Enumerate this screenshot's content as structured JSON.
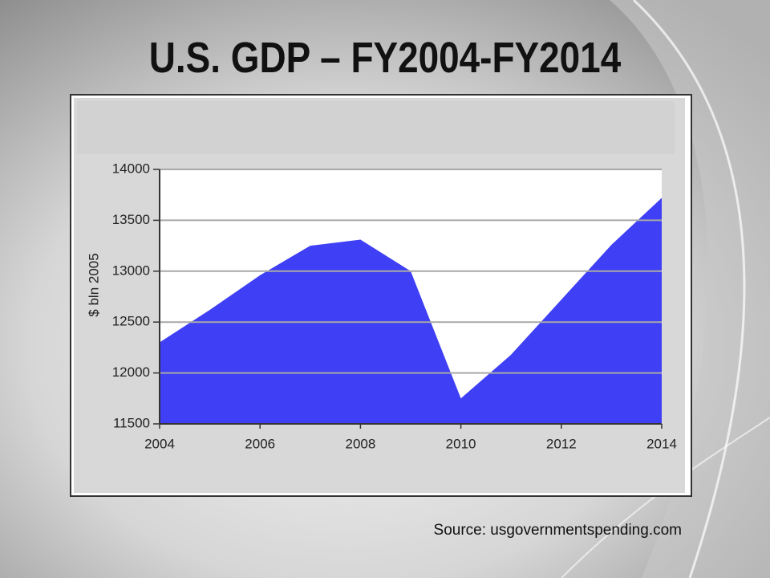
{
  "chart_data": {
    "type": "area",
    "title": "U.S. GDP – FY2004-FY2014",
    "y_label": "$ bln 2005",
    "source": "Source: usgovernmentspending.com",
    "x": [
      2004,
      2005,
      2006,
      2007,
      2008,
      2009,
      2010,
      2011,
      2012,
      2013,
      2014
    ],
    "series": [
      {
        "name": "GDP",
        "color": "#3f3ff5",
        "values": [
          12300,
          12620,
          12960,
          13250,
          13310,
          13000,
          11750,
          12180,
          12720,
          13260,
          13720
        ]
      }
    ],
    "xlim": [
      2004,
      2014
    ],
    "xticks": [
      2004,
      2006,
      2008,
      2010,
      2012,
      2014
    ],
    "ylim": [
      11500,
      14000
    ],
    "yticks": [
      11500,
      12000,
      12500,
      13000,
      13500,
      14000
    ],
    "grid": true
  }
}
